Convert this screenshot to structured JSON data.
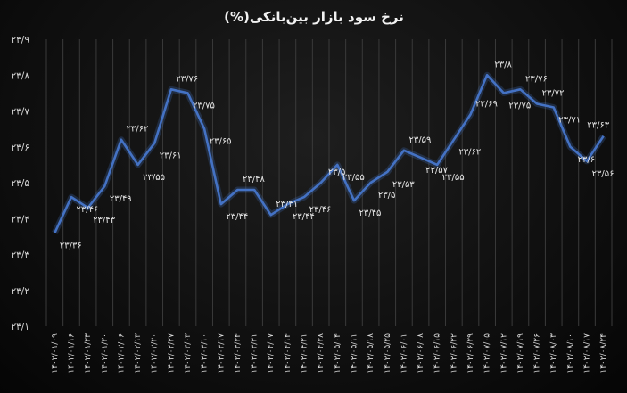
{
  "chart_data": {
    "type": "line",
    "title": "نرخ سود بازار بین‌بانکی(%)",
    "xlabel": "",
    "ylabel": "",
    "ylim": [
      23.1,
      23.9
    ],
    "yticks": [
      "۲۳/۹",
      "۲۳/۸",
      "۲۳/۷",
      "۲۳/۶",
      "۲۳/۵",
      "۲۳/۴",
      "۲۳/۳",
      "۲۳/۲",
      "۲۳/۱"
    ],
    "grid": "vertical",
    "legend": "none",
    "line_color": "#4472c4",
    "categories": [
      "۱۴۰۲/۰۱/۰۹",
      "۱۴۰۲/۰۱/۱۶",
      "۱۴۰۲/۰۱/۲۳",
      "۱۴۰۲/۰۱/۳۰",
      "۱۴۰۲/۰۲/۰۶",
      "۱۴۰۲/۰۲/۱۳",
      "۱۴۰۲/۰۲/۲۰",
      "۱۴۰۲/۰۲/۲۷",
      "۱۴۰۲/۰۳/۰۳",
      "۱۴۰۲/۰۳/۱۰",
      "۱۴۰۲/۰۳/۱۷",
      "۱۴۰۲/۰۳/۲۴",
      "۱۴۰۲/۰۳/۳۱",
      "۱۴۰۲/۰۴/۰۷",
      "۱۴۰۲/۰۴/۱۴",
      "۱۴۰۲/۰۴/۲۱",
      "۱۴۰۲/۰۴/۲۸",
      "۱۴۰۲/۰۵/۰۴",
      "۱۴۰۲/۰۵/۱۱",
      "۱۴۰۲/۰۵/۱۸",
      "۱۴۰۲/۰۵/۲۵",
      "۱۴۰۲/۰۶/۰۱",
      "۱۴۰۲/۰۶/۰۸",
      "۱۴۰۲/۰۶/۱۵",
      "۱۴۰۲/۰۶/۲۲",
      "۱۴۰۲/۰۶/۲۹",
      "۱۴۰۲/۰۷/۰۵",
      "۱۴۰۲/۰۷/۱۲",
      "۱۴۰۲/۰۷/۱۹",
      "۱۴۰۲/۰۷/۲۶",
      "۱۴۰۲/۰۸/۰۳",
      "۱۴۰۲/۰۸/۱۰",
      "۱۴۰۲/۰۸/۱۷",
      "۱۴۰۲/۰۸/۲۴"
    ],
    "values": [
      23.36,
      23.46,
      23.43,
      23.49,
      23.62,
      23.55,
      23.61,
      23.76,
      23.75,
      23.65,
      23.44,
      23.48,
      23.48,
      23.41,
      23.44,
      23.46,
      23.5,
      23.55,
      23.45,
      23.5,
      23.53,
      23.59,
      23.57,
      23.55,
      23.62,
      23.69,
      23.8,
      23.75,
      23.76,
      23.72,
      23.71,
      23.6,
      23.56,
      23.63
    ],
    "data_labels": [
      "۲۳/۳۶",
      "۲۳/۴۶",
      "۲۳/۴۳",
      "۲۳/۴۹",
      "۲۳/۶۲",
      "۲۳/۵۵",
      "۲۳/۶۱",
      "۲۳/۷۶",
      "۲۳/۷۵",
      "۲۳/۶۵",
      "۲۳/۴۴",
      "۲۳/۴۸",
      "",
      "۲۳/۴۱",
      "۲۳/۴۴",
      "۲۳/۴۶",
      "۲۳/۵",
      "۲۳/۵۵",
      "۲۳/۴۵",
      "۲۳/۵",
      "۲۳/۵۳",
      "۲۳/۵۹",
      "۲۳/۵۷",
      "۲۳/۵۵",
      "۲۳/۶۲",
      "۲۳/۶۹",
      "۲۳/۸",
      "۲۳/۷۵",
      "۲۳/۷۶",
      "۲۳/۷۲",
      "۲۳/۷۱",
      "۲۳/۶",
      "۲۳/۵۶",
      "۲۳/۶۳"
    ],
    "label_above": [
      false,
      false,
      false,
      false,
      true,
      false,
      false,
      true,
      false,
      false,
      false,
      true,
      false,
      true,
      false,
      false,
      true,
      false,
      false,
      false,
      false,
      true,
      false,
      false,
      false,
      true,
      true,
      false,
      true,
      true,
      false,
      false,
      false,
      true
    ]
  }
}
